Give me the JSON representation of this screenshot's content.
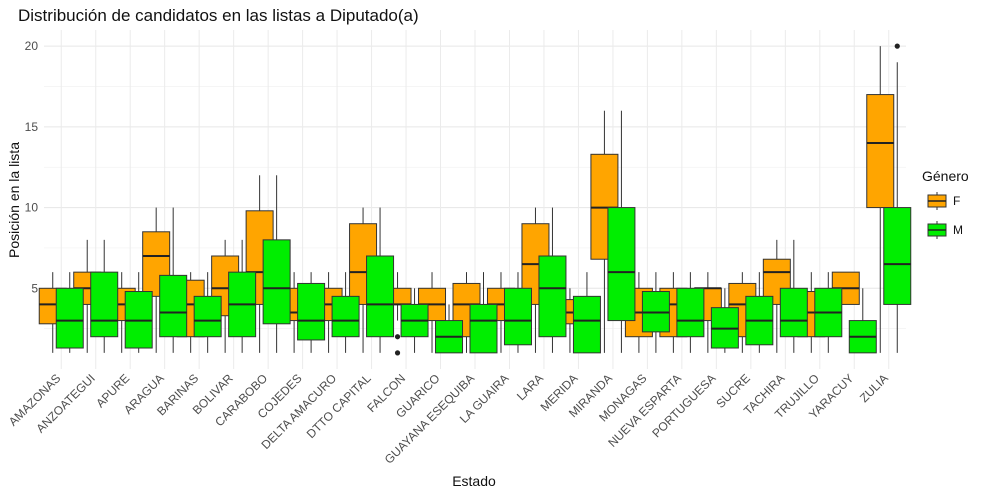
{
  "chart_data": {
    "type": "boxplot",
    "title": "Distribución de candidatos en las listas a Diputado(a)",
    "xlabel": "Estado",
    "ylabel": "Posición en la lista",
    "ylim": [
      0,
      21
    ],
    "yticks": [
      5,
      10,
      15,
      20
    ],
    "grid": true,
    "legend": {
      "title": "Género",
      "placement": "right"
    },
    "categories": [
      "AMAZONAS",
      "ANZOATEGUI",
      "APURE",
      "ARAGUA",
      "BARINAS",
      "BOLIVAR",
      "CARABOBO",
      "COJEDES",
      "DELTA AMACURO",
      "DTTO CAPITAL",
      "FALCON",
      "GUARICO",
      "GUAYANA ESEQUIBA",
      "LA GUAIRA",
      "LARA",
      "MERIDA",
      "MIRANDA",
      "MONAGAS",
      "NUEVA ESPARTA",
      "PORTUGUESA",
      "SUCRE",
      "TACHIRA",
      "TRUJILLO",
      "YARACUY",
      "ZULIA"
    ],
    "series": [
      {
        "name": "F",
        "color": "#FFA500",
        "boxes": [
          {
            "min": 1,
            "q1": 2.8,
            "median": 4,
            "q3": 5,
            "max": 6,
            "outliers": []
          },
          {
            "min": 1,
            "q1": 4,
            "median": 5,
            "q3": 6,
            "max": 8,
            "outliers": []
          },
          {
            "min": 1,
            "q1": 3,
            "median": 4,
            "q3": 5,
            "max": 6,
            "outliers": []
          },
          {
            "min": 1,
            "q1": 4.5,
            "median": 7,
            "q3": 8.5,
            "max": 10,
            "outliers": []
          },
          {
            "min": 1,
            "q1": 2,
            "median": 4,
            "q3": 5.5,
            "max": 6,
            "outliers": []
          },
          {
            "min": 1,
            "q1": 3.3,
            "median": 5,
            "q3": 7,
            "max": 8,
            "outliers": []
          },
          {
            "min": 1,
            "q1": 4,
            "median": 6,
            "q3": 9.8,
            "max": 12,
            "outliers": []
          },
          {
            "min": 1,
            "q1": 3,
            "median": 3.5,
            "q3": 5,
            "max": 6,
            "outliers": []
          },
          {
            "min": 1,
            "q1": 3,
            "median": 4,
            "q3": 5,
            "max": 6,
            "outliers": []
          },
          {
            "min": 1,
            "q1": 4,
            "median": 6,
            "q3": 9,
            "max": 10,
            "outliers": []
          },
          {
            "min": 3,
            "q1": 4,
            "median": 4,
            "q3": 5,
            "max": 6,
            "outliers": [
              2,
              1
            ]
          },
          {
            "min": 1,
            "q1": 3,
            "median": 4,
            "q3": 5,
            "max": 6,
            "outliers": []
          },
          {
            "min": 1,
            "q1": 2,
            "median": 4,
            "q3": 5.3,
            "max": 6,
            "outliers": []
          },
          {
            "min": 1,
            "q1": 3,
            "median": 4,
            "q3": 5,
            "max": 6,
            "outliers": []
          },
          {
            "min": 1,
            "q1": 4,
            "median": 6.5,
            "q3": 9,
            "max": 10,
            "outliers": []
          },
          {
            "min": 1,
            "q1": 2.8,
            "median": 3.5,
            "q3": 4.3,
            "max": 5,
            "outliers": []
          },
          {
            "min": 1,
            "q1": 6.8,
            "median": 10,
            "q3": 13.3,
            "max": 16,
            "outliers": []
          },
          {
            "min": 1,
            "q1": 2,
            "median": 3.5,
            "q3": 5,
            "max": 6,
            "outliers": []
          },
          {
            "min": 1,
            "q1": 2,
            "median": 4,
            "q3": 5,
            "max": 6,
            "outliers": []
          },
          {
            "min": 1,
            "q1": 3,
            "median": 5,
            "q3": 5,
            "max": 6,
            "outliers": []
          },
          {
            "min": 1,
            "q1": 2,
            "median": 4,
            "q3": 5.3,
            "max": 6,
            "outliers": []
          },
          {
            "min": 1,
            "q1": 4,
            "median": 6,
            "q3": 6.8,
            "max": 8,
            "outliers": []
          },
          {
            "min": 1,
            "q1": 2,
            "median": 3.5,
            "q3": 4.8,
            "max": 6,
            "outliers": []
          },
          {
            "min": 4,
            "q1": 4,
            "median": 5,
            "q3": 6,
            "max": 6,
            "outliers": []
          },
          {
            "min": 1,
            "q1": 10,
            "median": 14,
            "q3": 17,
            "max": 20,
            "outliers": []
          }
        ]
      },
      {
        "name": "M",
        "color": "#00EE00",
        "boxes": [
          {
            "min": 1,
            "q1": 1.3,
            "median": 3,
            "q3": 5,
            "max": 6,
            "outliers": []
          },
          {
            "min": 1,
            "q1": 2,
            "median": 3,
            "q3": 6,
            "max": 8,
            "outliers": []
          },
          {
            "min": 1,
            "q1": 1.3,
            "median": 3,
            "q3": 4.8,
            "max": 6,
            "outliers": []
          },
          {
            "min": 1,
            "q1": 2,
            "median": 3.5,
            "q3": 5.8,
            "max": 10,
            "outliers": []
          },
          {
            "min": 1,
            "q1": 2,
            "median": 3,
            "q3": 4.5,
            "max": 6,
            "outliers": []
          },
          {
            "min": 1,
            "q1": 2,
            "median": 4,
            "q3": 6,
            "max": 8,
            "outliers": []
          },
          {
            "min": 1,
            "q1": 2.8,
            "median": 5,
            "q3": 8,
            "max": 12,
            "outliers": []
          },
          {
            "min": 1,
            "q1": 1.8,
            "median": 3,
            "q3": 5.3,
            "max": 6,
            "outliers": []
          },
          {
            "min": 1,
            "q1": 2,
            "median": 3,
            "q3": 4.5,
            "max": 6,
            "outliers": []
          },
          {
            "min": 1,
            "q1": 2,
            "median": 4,
            "q3": 7,
            "max": 10,
            "outliers": []
          },
          {
            "min": 1,
            "q1": 2,
            "median": 3,
            "q3": 4,
            "max": 5,
            "outliers": []
          },
          {
            "min": 1,
            "q1": 1,
            "median": 2,
            "q3": 3,
            "max": 4,
            "outliers": []
          },
          {
            "min": 1,
            "q1": 1,
            "median": 3,
            "q3": 4,
            "max": 6,
            "outliers": []
          },
          {
            "min": 1,
            "q1": 1.5,
            "median": 3,
            "q3": 5,
            "max": 6,
            "outliers": []
          },
          {
            "min": 1,
            "q1": 2,
            "median": 5,
            "q3": 7,
            "max": 10,
            "outliers": []
          },
          {
            "min": 1,
            "q1": 1,
            "median": 3,
            "q3": 4.5,
            "max": 6,
            "outliers": []
          },
          {
            "min": 1,
            "q1": 3,
            "median": 6,
            "q3": 10,
            "max": 16,
            "outliers": []
          },
          {
            "min": 1,
            "q1": 2.3,
            "median": 3.5,
            "q3": 4.8,
            "max": 6,
            "outliers": []
          },
          {
            "min": 1,
            "q1": 2,
            "median": 3,
            "q3": 5,
            "max": 6,
            "outliers": []
          },
          {
            "min": 1,
            "q1": 1.3,
            "median": 2.5,
            "q3": 3.8,
            "max": 5,
            "outliers": []
          },
          {
            "min": 1,
            "q1": 1.5,
            "median": 3,
            "q3": 4.5,
            "max": 6,
            "outliers": []
          },
          {
            "min": 1,
            "q1": 2,
            "median": 3,
            "q3": 5,
            "max": 8,
            "outliers": []
          },
          {
            "min": 1,
            "q1": 2,
            "median": 3.5,
            "q3": 5,
            "max": 6,
            "outliers": []
          },
          {
            "min": 1,
            "q1": 1,
            "median": 2,
            "q3": 3,
            "max": 5,
            "outliers": []
          },
          {
            "min": 1,
            "q1": 4,
            "median": 6.5,
            "q3": 10,
            "max": 19,
            "outliers": [
              20
            ]
          }
        ]
      }
    ]
  }
}
